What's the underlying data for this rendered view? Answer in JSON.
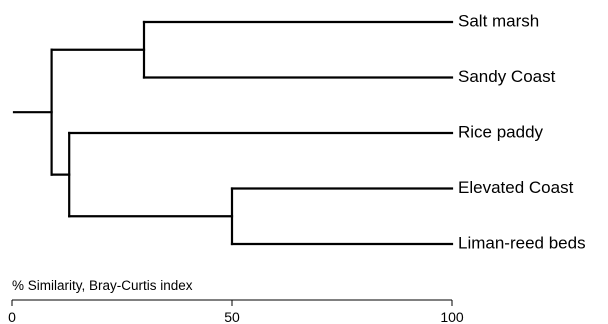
{
  "dendrogram": {
    "leaves": [
      {
        "label": "Salt marsh"
      },
      {
        "label": "Sandy Coast"
      },
      {
        "label": "Rice paddy"
      },
      {
        "label": "Elevated Coast"
      },
      {
        "label": "Liman-reed beds"
      }
    ],
    "merges": [
      {
        "children": [
          "leaf:0",
          "leaf:1"
        ],
        "similarity": 30
      },
      {
        "children": [
          "leaf:3",
          "leaf:4"
        ],
        "similarity": 50
      },
      {
        "children": [
          "leaf:2",
          "node:1"
        ],
        "similarity": 13
      },
      {
        "children": [
          "node:0",
          "node:2"
        ],
        "similarity": 9
      }
    ],
    "axis": {
      "title": "% Similarity, Bray-Curtis index",
      "min": 0,
      "max": 100,
      "ticks": [
        {
          "value": 0,
          "label": "0"
        },
        {
          "value": 50,
          "label": "50"
        },
        {
          "value": 100,
          "label": "100"
        }
      ]
    }
  }
}
